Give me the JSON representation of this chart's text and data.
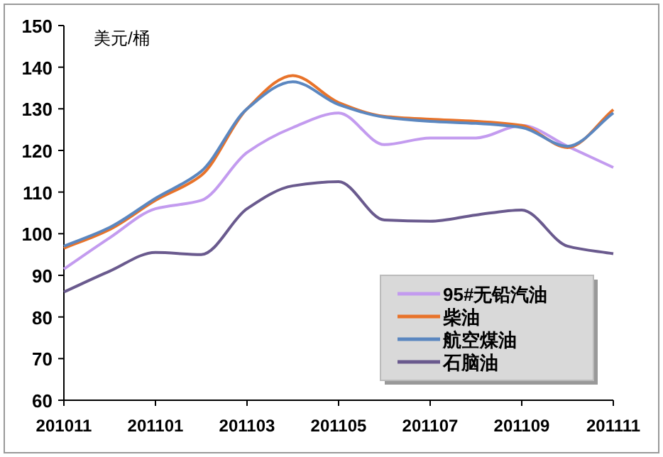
{
  "chart_data": {
    "type": "line",
    "ylabel": "美元/桶",
    "categories": [
      "201011",
      null,
      "201101",
      null,
      "201103",
      null,
      "201105",
      null,
      "201107",
      null,
      "201109",
      null,
      "201111"
    ],
    "ylim": [
      60,
      150
    ],
    "yticks": [
      60,
      70,
      80,
      90,
      100,
      110,
      120,
      130,
      140,
      150
    ],
    "grid": false,
    "legend": "bottom right",
    "marker": "none",
    "line_style": "solid",
    "series": [
      {
        "name": "95#无铅汽油",
        "color": "#c39bef",
        "values": [
          91.5,
          99,
          106,
          108,
          119.5,
          125.5,
          129,
          121.4,
          123,
          123,
          126,
          121,
          115.9
        ]
      },
      {
        "name": "柴油",
        "color": "#e8732a",
        "values": [
          96.5,
          101,
          108,
          114,
          130,
          138,
          131.5,
          128.2,
          127.5,
          127,
          126,
          120.7,
          129.8
        ]
      },
      {
        "name": "航空煤油",
        "color": "#5b87c0",
        "values": [
          97,
          101.5,
          108.5,
          115,
          130,
          136.5,
          131,
          128,
          127,
          126.5,
          125.5,
          121,
          129
        ]
      },
      {
        "name": "石脑油",
        "color": "#6a5a8e",
        "values": [
          86,
          91,
          95.5,
          95,
          106,
          111.5,
          112.5,
          103.3,
          103,
          104.5,
          105.7,
          97,
          95.2
        ]
      }
    ]
  }
}
